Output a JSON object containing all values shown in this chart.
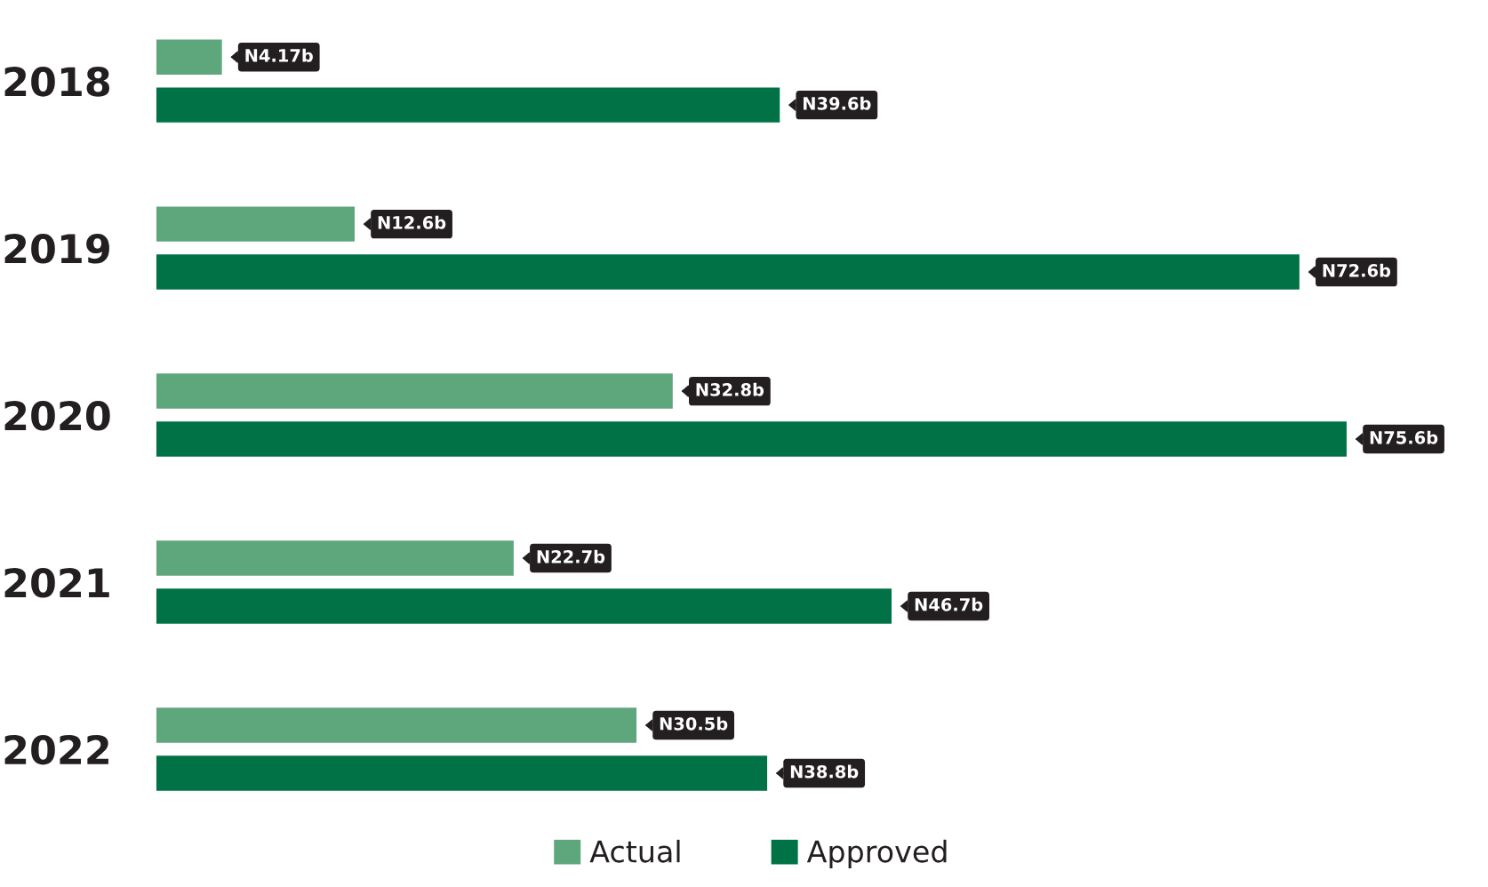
{
  "chart_data": {
    "type": "bar",
    "orientation": "horizontal",
    "categories": [
      "2018",
      "2019",
      "2020",
      "2021",
      "2022"
    ],
    "series": [
      {
        "name": "Actual",
        "color": "#5ea67b",
        "values": [
          4170000000,
          12600000000,
          32800000000,
          22700000000,
          30500000000
        ],
        "value_labels": [
          "N4.17b",
          "N12.6b",
          "N32.8b",
          "N22.7b",
          "N30.5b"
        ]
      },
      {
        "name": "Approved",
        "color": "#007246",
        "values": [
          39600000000,
          72600000000,
          75600000000,
          46700000000,
          38800000000
        ],
        "value_labels": [
          "N39.6b",
          "N72.6b",
          "N75.6b",
          "N46.7b",
          "N38.8b"
        ]
      }
    ],
    "legend": "bottom",
    "tick_labels": "y"
  }
}
